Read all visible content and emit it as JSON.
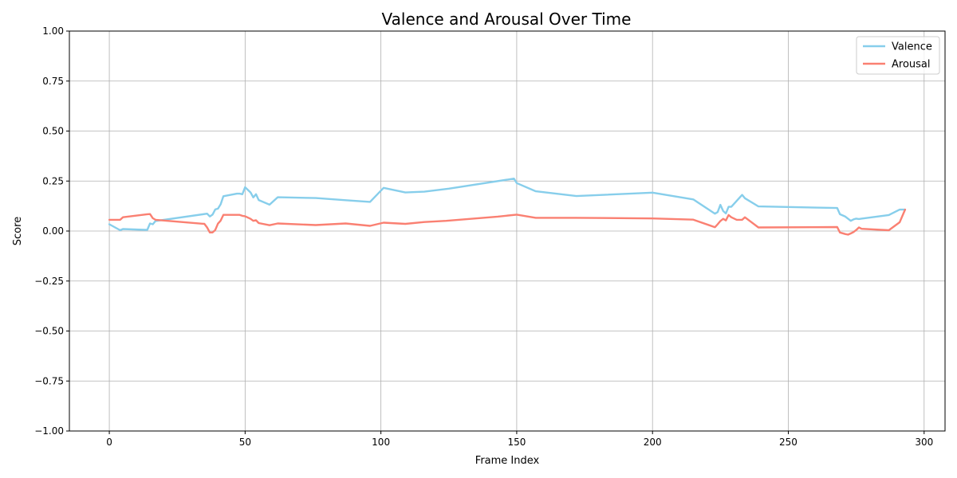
{
  "chart_data": {
    "type": "line",
    "title": "Valence and Arousal Over Time",
    "xlabel": "Frame Index",
    "ylabel": "Score",
    "xlim": [
      -14.7,
      307.7
    ],
    "ylim": [
      -1.0,
      1.0
    ],
    "xticks": [
      0,
      50,
      100,
      150,
      200,
      250,
      300
    ],
    "yticks": [
      -1.0,
      -0.75,
      -0.5,
      -0.25,
      0.0,
      0.25,
      0.5,
      0.75,
      1.0
    ],
    "xtick_labels": [
      "0",
      "50",
      "100",
      "150",
      "200",
      "250",
      "300"
    ],
    "ytick_labels": [
      "−1.00",
      "−0.75",
      "−0.50",
      "−0.25",
      "0.00",
      "0.25",
      "0.50",
      "0.75",
      "1.00"
    ],
    "grid": true,
    "legend_position": "top-right",
    "series": [
      {
        "name": "Valence",
        "color": "#87ceeb",
        "x": [
          0,
          4,
          5,
          13,
          14,
          15,
          16,
          17,
          36,
          37,
          38,
          39,
          40,
          41,
          42,
          47,
          48,
          49,
          50,
          52,
          53,
          54,
          55,
          59,
          62,
          76,
          87,
          96,
          101,
          109,
          116,
          125,
          149,
          150,
          157,
          172,
          200,
          215,
          223,
          224,
          225,
          226,
          227,
          228,
          229,
          231,
          233,
          234,
          239,
          268,
          269,
          271,
          273,
          274,
          275,
          276,
          277,
          287,
          291,
          293
        ],
        "y": [
          0.034,
          0.004,
          0.01,
          0.006,
          0.006,
          0.038,
          0.034,
          0.05,
          0.087,
          0.073,
          0.082,
          0.108,
          0.112,
          0.134,
          0.174,
          0.187,
          0.187,
          0.184,
          0.219,
          0.193,
          0.168,
          0.184,
          0.155,
          0.132,
          0.169,
          0.165,
          0.154,
          0.146,
          0.216,
          0.193,
          0.197,
          0.212,
          0.262,
          0.24,
          0.199,
          0.175,
          0.192,
          0.158,
          0.087,
          0.095,
          0.131,
          0.1,
          0.088,
          0.121,
          0.121,
          0.151,
          0.181,
          0.164,
          0.123,
          0.115,
          0.084,
          0.072,
          0.051,
          0.058,
          0.062,
          0.06,
          0.062,
          0.08,
          0.107,
          0.107
        ]
      },
      {
        "name": "Arousal",
        "color": "#fa8072",
        "x": [
          0,
          4,
          5,
          14,
          15,
          16,
          17,
          35,
          36,
          37,
          38,
          39,
          40,
          41,
          42,
          47,
          48,
          49,
          50,
          52,
          53,
          54,
          55,
          59,
          62,
          76,
          87,
          96,
          101,
          109,
          116,
          124,
          143,
          150,
          157,
          172,
          200,
          215,
          223,
          224,
          225,
          226,
          227,
          228,
          229,
          231,
          233,
          234,
          239,
          268,
          269,
          271,
          272,
          273,
          274,
          275,
          276,
          277,
          287,
          291,
          293
        ],
        "y": [
          0.056,
          0.056,
          0.069,
          0.084,
          0.085,
          0.064,
          0.056,
          0.036,
          0.018,
          -0.007,
          -0.007,
          0.005,
          0.037,
          0.052,
          0.081,
          0.081,
          0.081,
          0.076,
          0.074,
          0.061,
          0.051,
          0.054,
          0.04,
          0.029,
          0.038,
          0.03,
          0.038,
          0.026,
          0.042,
          0.036,
          0.045,
          0.051,
          0.072,
          0.082,
          0.066,
          0.066,
          0.063,
          0.057,
          0.019,
          0.034,
          0.05,
          0.061,
          0.053,
          0.08,
          0.069,
          0.056,
          0.056,
          0.069,
          0.018,
          0.02,
          -0.007,
          -0.015,
          -0.018,
          -0.012,
          -0.005,
          0.005,
          0.018,
          0.011,
          0.004,
          0.044,
          0.107
        ]
      }
    ]
  }
}
